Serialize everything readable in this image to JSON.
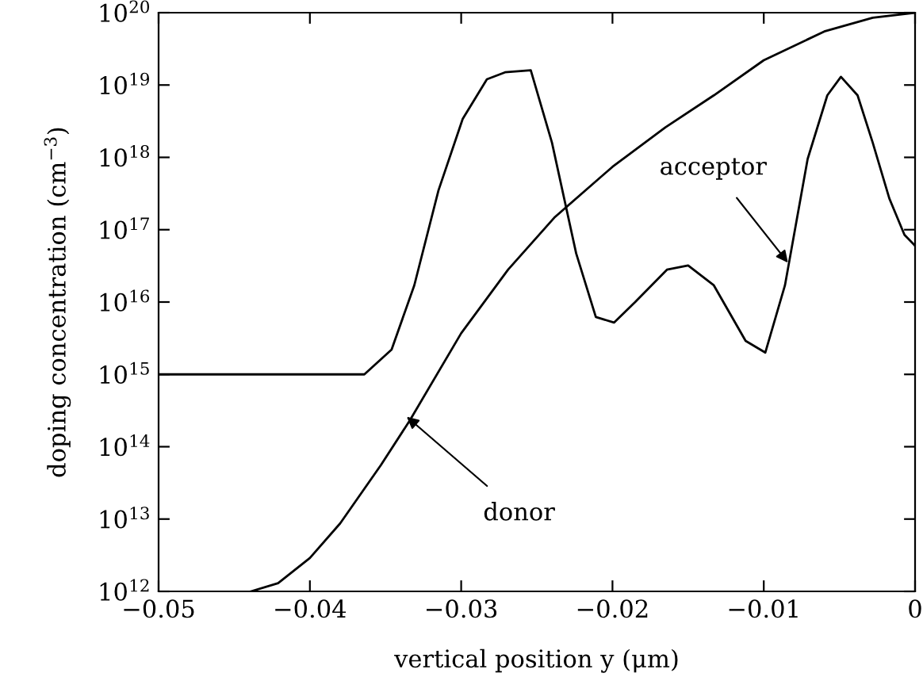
{
  "chart_data": {
    "type": "line",
    "xlabel": "vertical position y (μm)",
    "ylabel": "doping concentration (cm$^{−3}$)",
    "log": "y",
    "xlim": [
      -0.05,
      0
    ],
    "ylim": [
      1000000000000.0,
      1e+20
    ],
    "xticks": [
      {
        "value": -0.05,
        "label": "−0.05"
      },
      {
        "value": -0.04,
        "label": "−0.04"
      },
      {
        "value": -0.03,
        "label": "−0.03"
      },
      {
        "value": -0.02,
        "label": "−0.02"
      },
      {
        "value": -0.01,
        "label": "−0.01"
      },
      {
        "value": 0,
        "label": "0"
      }
    ],
    "yticks": [
      {
        "value": 1000000000000.0,
        "label": "10$^{12}$"
      },
      {
        "value": 10000000000000.0,
        "label": "10$^{13}$"
      },
      {
        "value": 100000000000000.0,
        "label": "10$^{14}$"
      },
      {
        "value": 1000000000000000.0,
        "label": "10$^{15}$"
      },
      {
        "value": 1e+16,
        "label": "10$^{16}$"
      },
      {
        "value": 1e+17,
        "label": "10$^{17}$"
      },
      {
        "value": 1e+18,
        "label": "10$^{18}$"
      },
      {
        "value": 1e+19,
        "label": "10$^{19}$"
      },
      {
        "value": 1e+20,
        "label": "10$^{20}$"
      }
    ],
    "grid": false,
    "legend": false,
    "series": [
      {
        "color": "#000000",
        "x": [
          -0.0439,
          -0.0421,
          -0.04,
          -0.038,
          -0.0353,
          -0.0334,
          -0.03,
          -0.0269,
          -0.0238,
          -0.02,
          -0.0165,
          -0.0133,
          -0.01,
          -0.006,
          -0.0028,
          0
        ],
        "values": [
          1000000000000.0,
          1300000000000.0,
          2900000000000.0,
          8700000000000.0,
          56000000000000.0,
          230000000000000.0,
          3700000000000000.0,
          2.8e+16,
          1.5e+17,
          7.4e+17,
          2.6e+18,
          7.2e+18,
          2.2e+19,
          5.5e+19,
          8.5e+19,
          1e+20
        ]
      },
      {
        "color": "#000000",
        "x": [
          -0.05,
          -0.0364,
          -0.0346,
          -0.0331,
          -0.0315,
          -0.0299,
          -0.0283,
          -0.0271,
          -0.0254,
          -0.024,
          -0.0224,
          -0.0211,
          -0.0199,
          -0.0185,
          -0.0164,
          -0.015,
          -0.0133,
          -0.0112,
          -0.0099,
          -0.0086,
          -0.0071,
          -0.0058,
          -0.0049,
          -0.0038,
          -0.0028,
          -0.0017,
          -0.0007,
          0
        ],
        "values": [
          1000000000000000.0,
          1000000000000000.0,
          2200000000000000.0,
          1.7e+16,
          3.5e+17,
          3.4e+18,
          1.2e+19,
          1.5e+19,
          1.6e+19,
          1.6e+18,
          4.7e+16,
          6200000000000000.0,
          5200000000000000.0,
          1e+16,
          2.8e+16,
          3.2e+16,
          1.7e+16,
          2900000000000000.0,
          2000000000000000.0,
          1.7e+16,
          9.5e+17,
          7.2e+18,
          1.3e+19,
          7.2e+18,
          1.6e+18,
          2.7e+17,
          8.5e+16,
          6e+16
        ]
      }
    ],
    "annotations": [
      {
        "text": "acceptor",
        "x": -0.0084,
        "y": 3.5e+16
      },
      {
        "text": "donor",
        "x": -0.0336,
        "y": 260000000000000.0
      }
    ]
  }
}
